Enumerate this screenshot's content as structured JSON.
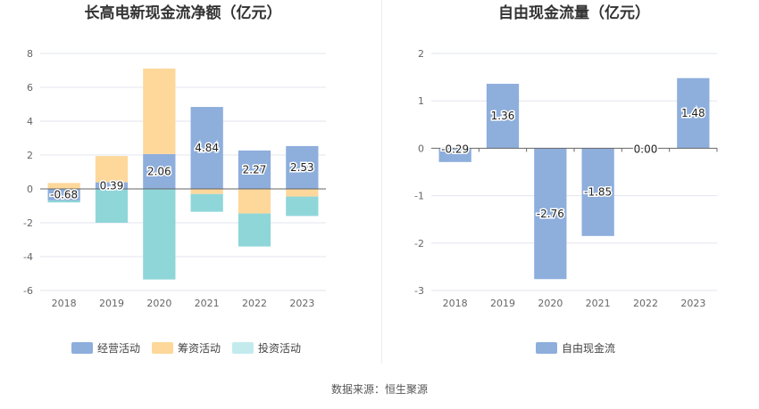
{
  "chart_data": [
    {
      "type": "bar",
      "stacked": true,
      "title": "长高电新现金流净额（亿元）",
      "categories": [
        "2018",
        "2019",
        "2020",
        "2021",
        "2022",
        "2023"
      ],
      "ylim": [
        -6,
        8
      ],
      "yticks": [
        "8",
        "6",
        "4",
        "2",
        "0",
        "-2",
        "-4",
        "-6"
      ],
      "grid": true,
      "legend_position": "bottom",
      "series": [
        {
          "name": "经营活动",
          "color": "#8eaedc",
          "values": [
            -0.68,
            0.39,
            2.06,
            4.84,
            2.27,
            2.53
          ]
        },
        {
          "name": "筹资活动",
          "color": "#fdd89a",
          "values": [
            0.35,
            1.55,
            5.05,
            -0.3,
            -1.45,
            -0.45
          ]
        },
        {
          "name": "投资活动",
          "color": "#8fd6d9",
          "values": [
            -0.12,
            -2.0,
            -5.35,
            -1.05,
            -1.95,
            -1.15
          ]
        }
      ],
      "data_labels": [
        "-0.68",
        "0.39",
        "2.06",
        "4.84",
        "2.27",
        "2.53"
      ]
    },
    {
      "type": "bar",
      "title": "自由现金流量（亿元）",
      "categories": [
        "2018",
        "2019",
        "2020",
        "2021",
        "2022",
        "2023"
      ],
      "ylim": [
        -3,
        2
      ],
      "yticks": [
        "2",
        "1",
        "0",
        "-1",
        "-2",
        "-3"
      ],
      "grid": true,
      "legend_position": "bottom",
      "series": [
        {
          "name": "自由现金流",
          "color": "#8eaedc",
          "values": [
            -0.29,
            1.36,
            -2.76,
            -1.85,
            0.0,
            1.48
          ]
        }
      ],
      "data_labels": [
        "-0.29",
        "1.36",
        "-2.76",
        "-1.85",
        "0.00",
        "1.48"
      ]
    }
  ],
  "source": "数据来源：恒生聚源"
}
